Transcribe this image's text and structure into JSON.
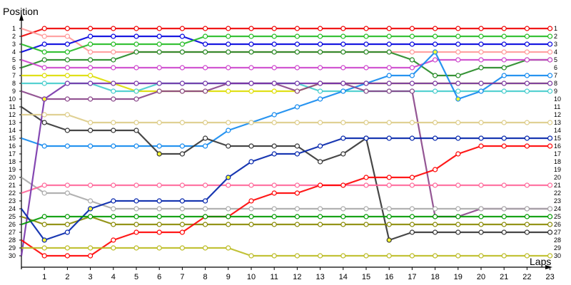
{
  "chart_data": {
    "type": "line",
    "xlabel": "Laps",
    "ylabel": "Position",
    "x": [
      0,
      1,
      2,
      3,
      4,
      5,
      6,
      7,
      8,
      9,
      10,
      11,
      12,
      13,
      14,
      15,
      16,
      17,
      18,
      19,
      20,
      21,
      22,
      23
    ],
    "x_tick_labels": [
      "1",
      "2",
      "3",
      "4",
      "5",
      "6",
      "7",
      "8",
      "9",
      "10",
      "11",
      "12",
      "13",
      "14",
      "15",
      "16",
      "17",
      "18",
      "19",
      "20",
      "21",
      "22",
      "23"
    ],
    "y_tick_labels": [
      "1",
      "2",
      "3",
      "4",
      "5",
      "6",
      "7",
      "8",
      "9",
      "10",
      "11",
      "12",
      "13",
      "14",
      "15",
      "16",
      "17",
      "18",
      "19",
      "20",
      "21",
      "22",
      "23",
      "24",
      "25",
      "26",
      "27",
      "28",
      "29",
      "30"
    ],
    "ylim": [
      1,
      30
    ],
    "y_inverted": true,
    "grid": false,
    "marker": "circle",
    "marker_fill": "white; yellow after a pit stop",
    "series": [
      {
        "color": "#ee0000",
        "values": [
          2,
          1,
          1,
          1,
          1,
          1,
          1,
          1,
          1,
          1,
          1,
          1,
          1,
          1,
          1,
          1,
          1,
          1,
          1,
          1,
          1,
          1,
          1,
          1
        ]
      },
      {
        "color": "#ff9999",
        "values": [
          1,
          2,
          2,
          4,
          4,
          4,
          4,
          4,
          4,
          4,
          4,
          4,
          4,
          4,
          4,
          4,
          4,
          4,
          4,
          4,
          4,
          4,
          4,
          4
        ]
      },
      {
        "color": "#0000dd",
        "values": [
          4,
          3,
          3,
          2,
          2,
          2,
          2,
          2,
          3,
          3,
          3,
          3,
          3,
          3,
          3,
          3,
          3,
          3,
          3,
          3,
          3,
          3,
          3,
          3
        ]
      },
      {
        "color": "#22bb22",
        "values": [
          3,
          4,
          4,
          3,
          3,
          3,
          3,
          3,
          2,
          2,
          2,
          2,
          2,
          2,
          2,
          2,
          2,
          2,
          2,
          2,
          2,
          2,
          2,
          2
        ]
      },
      {
        "color": "#228822",
        "values": [
          6,
          5,
          5,
          5,
          5,
          4,
          4,
          4,
          4,
          4,
          4,
          4,
          4,
          4,
          4,
          4,
          4,
          5,
          7,
          7,
          6,
          6,
          5,
          5
        ]
      },
      {
        "color": "#cc44cc",
        "values": [
          5,
          6,
          6,
          6,
          6,
          6,
          6,
          6,
          6,
          6,
          6,
          6,
          6,
          6,
          6,
          6,
          6,
          6,
          5,
          5,
          5,
          5,
          5,
          5
        ]
      },
      {
        "color": "#dddd00",
        "values": [
          7,
          7,
          7,
          7,
          8,
          9,
          9,
          9,
          9,
          9,
          9,
          9,
          9,
          8,
          8,
          8,
          8,
          8,
          8,
          8,
          8,
          8,
          8,
          8
        ]
      },
      {
        "color": "#44cccc",
        "values": [
          8,
          8,
          8,
          8,
          9,
          9,
          8,
          8,
          8,
          8,
          8,
          8,
          8,
          9,
          9,
          9,
          9,
          9,
          9,
          9,
          9,
          9,
          9,
          9
        ]
      },
      {
        "color": "#1188ee",
        "values": [
          15,
          16,
          16,
          16,
          16,
          16,
          16,
          16,
          16,
          14,
          13,
          12,
          11,
          10,
          9,
          8,
          7,
          7,
          4,
          10,
          9,
          7,
          7,
          7
        ]
      },
      {
        "color": "#884488",
        "values": [
          9,
          10,
          10,
          10,
          10,
          10,
          9,
          9,
          9,
          8,
          8,
          8,
          9,
          8,
          8,
          9,
          9,
          9,
          25,
          25,
          24,
          24,
          24,
          24
        ]
      },
      {
        "color": "#333333",
        "values": [
          11,
          13,
          14,
          14,
          14,
          14,
          17,
          17,
          15,
          16,
          16,
          16,
          16,
          18,
          17,
          15,
          28,
          27,
          27,
          27,
          27,
          27,
          27,
          27
        ]
      },
      {
        "color": "#ddcc88",
        "values": [
          12,
          12,
          12,
          13,
          13,
          13,
          13,
          13,
          13,
          13,
          13,
          13,
          13,
          13,
          13,
          13,
          13,
          13,
          13,
          13,
          13,
          13,
          13,
          13
        ]
      },
      {
        "color": "#888800",
        "values": [
          25,
          26,
          26,
          25,
          26,
          26,
          26,
          26,
          26,
          26,
          26,
          26,
          26,
          26,
          26,
          26,
          26,
          26,
          26,
          26,
          26,
          26,
          26,
          26
        ]
      },
      {
        "color": "#aaaaaa",
        "values": [
          20,
          22,
          22,
          23,
          24,
          24,
          24,
          24,
          24,
          24,
          24,
          24,
          24,
          24,
          24,
          24,
          24,
          24,
          24,
          24,
          24,
          24,
          24,
          24
        ]
      },
      {
        "color": "#ff6699",
        "values": [
          22,
          21,
          21,
          21,
          21,
          21,
          21,
          21,
          21,
          21,
          21,
          21,
          21,
          21,
          21,
          21,
          21,
          21,
          21,
          21,
          21,
          21,
          21,
          21
        ]
      },
      {
        "color": "#7733aa",
        "values": [
          30,
          10,
          8,
          8,
          8,
          8,
          8,
          8,
          8,
          8,
          8,
          8,
          8,
          8,
          8,
          8,
          8,
          8,
          8,
          8,
          8,
          8,
          8,
          8
        ]
      },
      {
        "color": "#0022aa",
        "values": [
          24,
          28,
          27,
          24,
          23,
          23,
          23,
          23,
          23,
          20,
          18,
          17,
          17,
          16,
          15,
          15,
          15,
          15,
          15,
          15,
          15,
          15,
          15,
          15
        ]
      },
      {
        "color": "#ff0000",
        "values": [
          28,
          30,
          30,
          30,
          28,
          27,
          27,
          27,
          25,
          25,
          23,
          22,
          22,
          21,
          21,
          20,
          20,
          20,
          19,
          17,
          16,
          16,
          16,
          16
        ]
      },
      {
        "color": "#009900",
        "values": [
          26,
          25,
          25,
          25,
          25,
          25,
          25,
          25,
          25,
          25,
          25,
          25,
          25,
          25,
          25,
          25,
          25,
          25,
          25,
          25,
          25,
          25,
          25,
          25
        ]
      },
      {
        "color": "#bbbb22",
        "values": [
          29,
          29,
          29,
          29,
          29,
          29,
          29,
          29,
          29,
          29,
          30,
          30,
          30,
          30,
          30,
          30,
          30,
          30,
          30,
          30,
          30,
          30,
          30,
          30
        ]
      }
    ]
  }
}
